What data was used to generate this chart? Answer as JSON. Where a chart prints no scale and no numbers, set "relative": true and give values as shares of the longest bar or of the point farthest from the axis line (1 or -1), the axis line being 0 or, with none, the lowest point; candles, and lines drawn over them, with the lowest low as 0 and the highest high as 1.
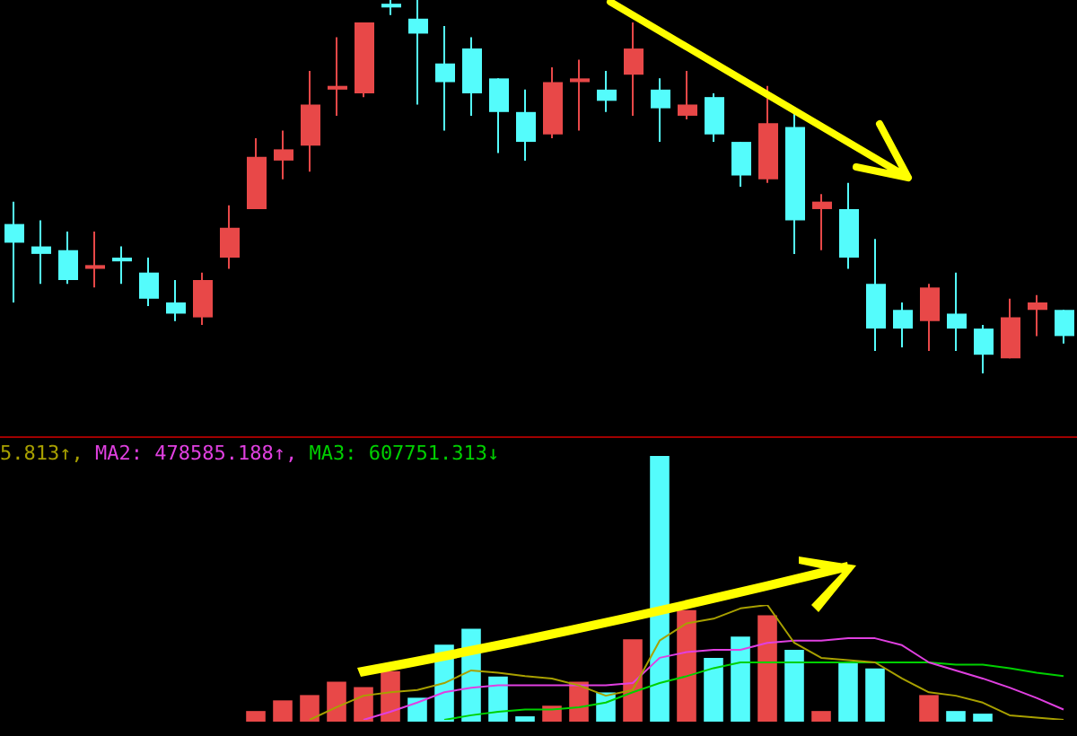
{
  "chart_data": [
    {
      "type": "candlestick",
      "relative": true,
      "categories": [
        null,
        null,
        null,
        null,
        null,
        null,
        null,
        null,
        null,
        null,
        null,
        null,
        null,
        null,
        null,
        null,
        null,
        null,
        null,
        null,
        null,
        null,
        null,
        null,
        null,
        null,
        null,
        null,
        null,
        null,
        null,
        null,
        null,
        null,
        null,
        null,
        null,
        null,
        null,
        null
      ],
      "ohlc": [
        [
          0.4,
          0.46,
          0.19,
          0.35
        ],
        [
          0.34,
          0.41,
          0.24,
          0.32
        ],
        [
          0.33,
          0.38,
          0.24,
          0.25
        ],
        [
          0.28,
          0.38,
          0.23,
          0.29
        ],
        [
          0.31,
          0.34,
          0.24,
          0.3
        ],
        [
          0.27,
          0.31,
          0.18,
          0.2
        ],
        [
          0.19,
          0.25,
          0.14,
          0.16
        ],
        [
          0.15,
          0.27,
          0.13,
          0.25
        ],
        [
          0.31,
          0.45,
          0.28,
          0.39
        ],
        [
          0.44,
          0.63,
          0.44,
          0.58
        ],
        [
          0.57,
          0.65,
          0.52,
          0.6
        ],
        [
          0.61,
          0.81,
          0.54,
          0.72
        ],
        [
          0.76,
          0.9,
          0.69,
          0.77
        ],
        [
          0.75,
          0.94,
          0.74,
          0.94
        ],
        [
          0.99,
          1,
          0.96,
          0.98
        ],
        [
          0.95,
          1,
          0.72,
          0.91
        ],
        [
          0.83,
          0.93,
          0.65,
          0.78
        ],
        [
          0.87,
          0.9,
          0.69,
          0.75
        ],
        [
          0.79,
          0.79,
          0.59,
          0.7
        ],
        [
          0.7,
          0.76,
          0.57,
          0.62
        ],
        [
          0.64,
          0.82,
          0.63,
          0.78
        ],
        [
          0.78,
          0.84,
          0.65,
          0.79
        ],
        [
          0.76,
          0.81,
          0.7,
          0.73
        ],
        [
          0.8,
          0.94,
          0.69,
          0.87
        ],
        [
          0.76,
          0.79,
          0.62,
          0.71
        ],
        [
          0.69,
          0.81,
          0.68,
          0.72
        ],
        [
          0.74,
          0.75,
          0.62,
          0.64
        ],
        [
          0.62,
          0.62,
          0.5,
          0.53
        ],
        [
          0.52,
          0.77,
          0.51,
          0.67
        ],
        [
          0.66,
          0.7,
          0.32,
          0.41
        ],
        [
          0.44,
          0.48,
          0.33,
          0.46
        ],
        [
          0.44,
          0.51,
          0.28,
          0.31
        ],
        [
          0.24,
          0.36,
          0.06,
          0.12
        ],
        [
          0.17,
          0.19,
          0.07,
          0.12
        ],
        [
          0.14,
          0.24,
          0.06,
          0.23
        ],
        [
          0.16,
          0.27,
          0.06,
          0.12
        ],
        [
          0.12,
          0.13,
          0,
          0.05
        ],
        [
          0.04,
          0.2,
          0.04,
          0.15
        ],
        [
          0.17,
          0.21,
          0.1,
          0.19
        ],
        [
          0.17,
          0.17,
          0.08,
          0.1
        ]
      ],
      "colors": [
        "#54fcfc",
        "#54fcfc",
        "#54fcfc",
        "#e84848",
        "#54fcfc",
        "#54fcfc",
        "#54fcfc",
        "#e84848",
        "#e84848",
        "#e84848",
        "#e84848",
        "#e84848",
        "#e84848",
        "#e84848",
        "#54fcfc",
        "#54fcfc",
        "#54fcfc",
        "#54fcfc",
        "#54fcfc",
        "#54fcfc",
        "#e84848",
        "#e84848",
        "#54fcfc",
        "#e84848",
        "#54fcfc",
        "#e84848",
        "#54fcfc",
        "#54fcfc",
        "#e84848",
        "#54fcfc",
        "#e84848",
        "#54fcfc",
        "#54fcfc",
        "#54fcfc",
        "#e84848",
        "#54fcfc",
        "#54fcfc",
        "#e84848",
        "#e84848",
        "#54fcfc"
      ]
    },
    {
      "type": "bar",
      "relative": true,
      "categories": [
        null,
        null,
        null,
        null,
        null,
        null,
        null,
        null,
        null,
        null,
        null,
        null,
        null,
        null,
        null,
        null,
        null,
        null,
        null,
        null,
        null,
        null,
        null,
        null,
        null,
        null,
        null,
        null,
        null,
        null,
        null,
        null,
        null,
        null,
        null,
        null,
        null,
        null,
        null,
        null
      ],
      "colors": [
        "#54fcfc",
        "#54fcfc",
        "#54fcfc",
        "#e84848",
        "#54fcfc",
        "#54fcfc",
        "#54fcfc",
        "#e84848",
        "#e84848",
        "#e84848",
        "#e84848",
        "#e84848",
        "#e84848",
        "#e84848",
        "#e84848",
        "#54fcfc",
        "#54fcfc",
        "#54fcfc",
        "#54fcfc",
        "#54fcfc",
        "#e84848",
        "#e84848",
        "#54fcfc",
        "#e84848",
        "#54fcfc",
        "#e84848",
        "#54fcfc",
        "#54fcfc",
        "#e84848",
        "#54fcfc",
        "#e84848",
        "#54fcfc",
        "#54fcfc",
        "#54fcfc",
        "#e84848",
        "#54fcfc",
        "#54fcfc",
        "#e84848",
        "#e84848",
        "#54fcfc"
      ],
      "values": [
        null,
        null,
        null,
        null,
        null,
        null,
        null,
        null,
        null,
        0.04,
        0.08,
        0.1,
        0.15,
        0.13,
        0.19,
        0.09,
        0.29,
        0.35,
        0.17,
        0.02,
        0.06,
        0.15,
        0.11,
        0.31,
        1,
        0.42,
        0.24,
        0.32,
        0.4,
        0.27,
        0.04,
        0.22,
        0.2,
        null,
        0.1,
        0.04,
        0.03,
        null,
        null,
        null
      ]
    },
    {
      "type": "line",
      "relative": true,
      "marker": "none",
      "categories": [
        null,
        null,
        null,
        null,
        null,
        null,
        null,
        null,
        null,
        null,
        null,
        null,
        null,
        null,
        null,
        null,
        null,
        null,
        null,
        null,
        null,
        null,
        null,
        null,
        null,
        null,
        null,
        null,
        null,
        null,
        null,
        null,
        null,
        null,
        null,
        null,
        null,
        null,
        null,
        null
      ],
      "annotations": [
        "5.813↑,",
        "MA2: 478585.188↑,",
        "MA3: 607751.313↓"
      ],
      "series": [
        {
          "color": "#a8a000",
          "values": [
            null,
            null,
            null,
            null,
            null,
            null,
            null,
            null,
            null,
            null,
            null,
            0,
            0.11,
            0.21,
            0.24,
            0.26,
            0.32,
            0.43,
            0.41,
            0.38,
            0.36,
            0.3,
            0.21,
            0.26,
            0.69,
            0.84,
            0.88,
            0.97,
            1,
            0.67,
            0.54,
            0.52,
            0.5,
            0.36,
            0.24,
            0.21,
            0.15,
            0.04,
            0.02,
            0
          ]
        },
        {
          "color": "#e040e0",
          "values": [
            null,
            null,
            null,
            null,
            null,
            null,
            null,
            null,
            null,
            null,
            null,
            null,
            null,
            0,
            0.07,
            0.15,
            0.24,
            0.28,
            0.3,
            0.3,
            0.3,
            0.3,
            0.3,
            0.32,
            0.54,
            0.59,
            0.61,
            0.61,
            0.67,
            0.69,
            0.69,
            0.71,
            0.71,
            0.65,
            0.5,
            0.43,
            0.36,
            0.28,
            0.19,
            0.09
          ]
        },
        {
          "color": "#00d000",
          "values": [
            null,
            null,
            null,
            null,
            null,
            null,
            null,
            null,
            null,
            null,
            null,
            null,
            null,
            null,
            null,
            null,
            0,
            0.04,
            0.07,
            0.09,
            0.09,
            0.11,
            0.15,
            0.24,
            0.32,
            0.38,
            0.45,
            0.5,
            0.5,
            0.5,
            0.5,
            0.5,
            0.5,
            0.5,
            0.5,
            0.48,
            0.48,
            0.45,
            0.41,
            0.38
          ]
        }
      ]
    }
  ]
}
